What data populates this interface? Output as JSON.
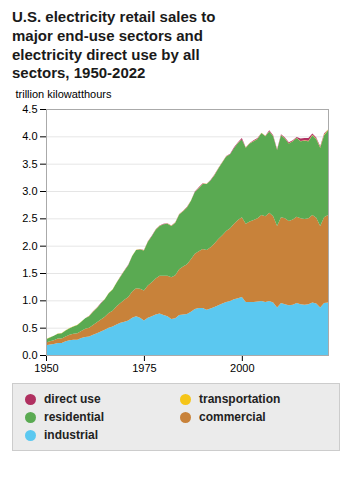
{
  "chart_data": {
    "type": "area",
    "stacked": true,
    "title": "U.S. electricity retail sales to\nmajor end-use sectors and\nelectricity direct use by all\nsectors, 1950-2022",
    "ylabel": "trillion kilowatthours",
    "x": [
      1950,
      1951,
      1952,
      1953,
      1954,
      1955,
      1956,
      1957,
      1958,
      1959,
      1960,
      1961,
      1962,
      1963,
      1964,
      1965,
      1966,
      1967,
      1968,
      1969,
      1970,
      1971,
      1972,
      1973,
      1974,
      1975,
      1976,
      1977,
      1978,
      1979,
      1980,
      1981,
      1982,
      1983,
      1984,
      1985,
      1986,
      1987,
      1988,
      1989,
      1990,
      1991,
      1992,
      1993,
      1994,
      1995,
      1996,
      1997,
      1998,
      1999,
      2000,
      2001,
      2002,
      2003,
      2004,
      2005,
      2006,
      2007,
      2008,
      2009,
      2010,
      2011,
      2012,
      2013,
      2014,
      2015,
      2016,
      2017,
      2018,
      2019,
      2020,
      2021,
      2022
    ],
    "series": [
      {
        "name": "industrial",
        "color": "#5bc8f0",
        "values": [
          0.18,
          0.19,
          0.2,
          0.22,
          0.22,
          0.25,
          0.27,
          0.28,
          0.28,
          0.31,
          0.33,
          0.34,
          0.37,
          0.4,
          0.43,
          0.46,
          0.5,
          0.52,
          0.56,
          0.59,
          0.61,
          0.63,
          0.68,
          0.71,
          0.68,
          0.63,
          0.68,
          0.71,
          0.74,
          0.76,
          0.73,
          0.71,
          0.66,
          0.67,
          0.73,
          0.74,
          0.75,
          0.79,
          0.84,
          0.86,
          0.86,
          0.83,
          0.85,
          0.88,
          0.91,
          0.94,
          0.97,
          0.99,
          1.02,
          1.04,
          1.06,
          0.97,
          0.97,
          0.97,
          0.98,
          0.99,
          0.97,
          0.99,
          0.96,
          0.87,
          0.95,
          0.93,
          0.91,
          0.92,
          0.95,
          0.93,
          0.92,
          0.93,
          0.96,
          0.94,
          0.87,
          0.95,
          0.96
        ]
      },
      {
        "name": "commercial",
        "color": "#c8823a",
        "values": [
          0.05,
          0.06,
          0.07,
          0.08,
          0.08,
          0.09,
          0.1,
          0.11,
          0.12,
          0.13,
          0.15,
          0.16,
          0.18,
          0.2,
          0.22,
          0.24,
          0.27,
          0.29,
          0.33,
          0.36,
          0.4,
          0.43,
          0.48,
          0.51,
          0.53,
          0.55,
          0.59,
          0.62,
          0.66,
          0.69,
          0.72,
          0.74,
          0.76,
          0.79,
          0.84,
          0.88,
          0.91,
          0.96,
          1.01,
          1.04,
          1.08,
          1.09,
          1.12,
          1.16,
          1.21,
          1.25,
          1.3,
          1.33,
          1.38,
          1.43,
          1.46,
          1.43,
          1.47,
          1.5,
          1.52,
          1.57,
          1.57,
          1.61,
          1.58,
          1.49,
          1.57,
          1.57,
          1.54,
          1.56,
          1.58,
          1.57,
          1.57,
          1.57,
          1.6,
          1.57,
          1.49,
          1.57,
          1.6
        ]
      },
      {
        "name": "residential",
        "color": "#5aaa52",
        "values": [
          0.06,
          0.07,
          0.08,
          0.09,
          0.1,
          0.11,
          0.12,
          0.13,
          0.15,
          0.17,
          0.19,
          0.21,
          0.24,
          0.26,
          0.29,
          0.32,
          0.36,
          0.39,
          0.43,
          0.48,
          0.53,
          0.58,
          0.65,
          0.7,
          0.72,
          0.73,
          0.8,
          0.84,
          0.89,
          0.91,
          0.94,
          0.95,
          0.94,
          0.96,
          1.0,
          1.01,
          1.04,
          1.07,
          1.13,
          1.15,
          1.19,
          1.21,
          1.22,
          1.25,
          1.29,
          1.33,
          1.36,
          1.35,
          1.38,
          1.41,
          1.42,
          1.39,
          1.43,
          1.44,
          1.45,
          1.5,
          1.46,
          1.49,
          1.46,
          1.39,
          1.5,
          1.46,
          1.42,
          1.43,
          1.44,
          1.41,
          1.43,
          1.41,
          1.46,
          1.44,
          1.43,
          1.5,
          1.55
        ]
      },
      {
        "name": "transportation",
        "color": "#f5c518",
        "values": [
          0.004,
          0.004,
          0.004,
          0.004,
          0.004,
          0.004,
          0.004,
          0.004,
          0.004,
          0.004,
          0.004,
          0.004,
          0.004,
          0.004,
          0.004,
          0.004,
          0.004,
          0.004,
          0.004,
          0.004,
          0.004,
          0.004,
          0.004,
          0.004,
          0.004,
          0.004,
          0.004,
          0.004,
          0.004,
          0.004,
          0.004,
          0.004,
          0.004,
          0.004,
          0.004,
          0.004,
          0.004,
          0.004,
          0.004,
          0.004,
          0.004,
          0.004,
          0.004,
          0.004,
          0.004,
          0.004,
          0.004,
          0.004,
          0.004,
          0.004,
          0.004,
          0.004,
          0.004,
          0.004,
          0.004,
          0.004,
          0.004,
          0.004,
          0.004,
          0.004,
          0.004,
          0.004,
          0.004,
          0.004,
          0.004,
          0.006,
          0.007,
          0.008,
          0.009,
          0.01,
          0.011,
          0.012,
          0.013
        ]
      },
      {
        "name": "direct use",
        "color": "#b03060",
        "values": [
          0,
          0,
          0,
          0,
          0,
          0,
          0,
          0,
          0,
          0,
          0,
          0.006,
          0.006,
          0.006,
          0.006,
          0,
          0,
          0,
          0,
          0.006,
          0.006,
          0.006,
          0,
          0,
          0.006,
          0.006,
          0.006,
          0.006,
          0.006,
          0.006,
          0.006,
          0.006,
          0.006,
          0.006,
          0.006,
          0.006,
          0.006,
          0,
          0.006,
          0.016,
          0.006,
          0,
          0.006,
          0.006,
          0.006,
          0.006,
          0.006,
          0.006,
          0.016,
          0.006,
          0.026,
          0.006,
          0.006,
          0.016,
          0.016,
          0,
          0.006,
          0.016,
          0.016,
          0.016,
          0.016,
          0.016,
          0.016,
          0.016,
          0.016,
          0.044,
          0.043,
          0.052,
          0.021,
          0.02,
          0.019,
          0.018,
          0
        ]
      }
    ],
    "xlim": [
      1950,
      2022
    ],
    "xticks": [
      1950,
      1975,
      2000
    ],
    "ylim": [
      0,
      4.5
    ],
    "yticks": [
      {
        "value": 0,
        "label": "0.0"
      },
      0.5,
      {
        "value": 1,
        "label": "1.0"
      },
      1.5,
      {
        "value": 2,
        "label": "2.0"
      },
      2.5,
      {
        "value": 3,
        "label": "3.0"
      },
      3.5,
      {
        "value": 4,
        "label": "4.0"
      },
      4.5
    ],
    "grid": true
  }
}
